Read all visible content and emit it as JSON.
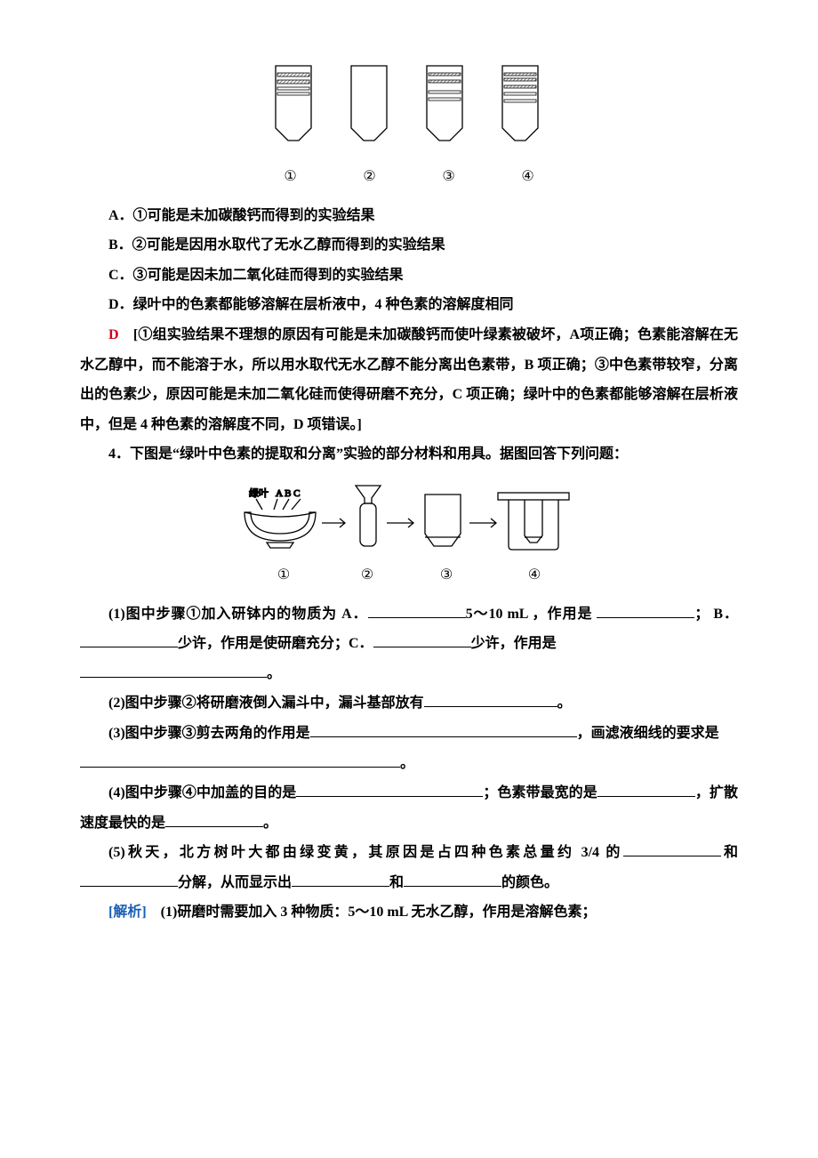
{
  "figure1": {
    "labels": [
      "①",
      "②",
      "③",
      "④"
    ],
    "stroke": "#000000",
    "fill_hatch": "#a8a8a8",
    "strips": {
      "s1": [
        {
          "y": 8,
          "h": 4,
          "fill": true
        },
        {
          "y": 16,
          "h": 4,
          "fill": true
        },
        {
          "y": 24,
          "h": 3,
          "fill": false
        },
        {
          "y": 30,
          "h": 3,
          "fill": false
        }
      ],
      "s2": [],
      "s3": [
        {
          "y": 8,
          "h": 3,
          "fill": true
        },
        {
          "y": 16,
          "h": 3,
          "fill": true
        },
        {
          "y": 28,
          "h": 3,
          "fill": false
        },
        {
          "y": 36,
          "h": 3,
          "fill": false
        }
      ],
      "s4": [
        {
          "y": 8,
          "h": 3,
          "fill": true
        },
        {
          "y": 14,
          "h": 3,
          "fill": true
        },
        {
          "y": 22,
          "h": 3,
          "fill": true
        },
        {
          "y": 30,
          "h": 3,
          "fill": false
        },
        {
          "y": 38,
          "h": 3,
          "fill": false
        }
      ]
    }
  },
  "figure2": {
    "mortar_label_left": "绿叶",
    "mortar_label_right": "A  B  C",
    "labels": [
      "①",
      "②",
      "③",
      "④"
    ],
    "stroke": "#000000"
  },
  "options": {
    "A": "A．①可能是未加碳酸钙而得到的实验结果",
    "B": "B．②可能是因用水取代了无水乙醇而得到的实验结果",
    "C": "C．③可能是因未加二氧化硅而得到的实验结果",
    "D": "D．绿叶中的色素都能够溶解在层析液中，4 种色素的溶解度相同"
  },
  "answer": {
    "key": "D",
    "text_pre": "　[①组实验结果不理想的原因有可能是未加碳酸钙而使叶绿素被破坏，A项正确；色素能溶解在无水乙醇中，而不能溶于水，所以用水取代无水乙醇不能分离出色素带，B 项正确；③中色素带较窄，分离出的色素少，原因可能是未加二氧化硅而使得研磨不充分，C 项正确；绿叶中的色素都能够溶解在层析液中，但是 4 种色素的溶解度不同，D 项错误。]"
  },
  "q4": {
    "stem": "4．下图是“绿叶中色素的提取和分离”实验的部分材料和用具。据图回答下列问题：",
    "sub1_pre": "(1)图中步骤①加入研钵内的物质为 A．",
    "sub1_mid1": "5～10 mL ，作用是",
    "sub1_mid2": "； B．",
    "sub1_mid3": "少许，作用是使研磨充分；C．",
    "sub1_mid4": "少许，作用是",
    "sub1_end": "。",
    "sub2_pre": "(2)图中步骤②将研磨液倒入漏斗中，漏斗基部放有",
    "sub2_end": "。",
    "sub3_pre": "(3)图中步骤③剪去两角的作用是",
    "sub3_mid": "，画滤液细线的要求是",
    "sub3_end": "。",
    "sub4_pre": "(4)图中步骤④中加盖的目的是",
    "sub4_mid": "；色素带最宽的是",
    "sub4_mid2": "，扩散速度最快的是",
    "sub4_end": "。",
    "sub5_pre": "(5)秋天，北方树叶大都由绿变黄，其原因是占四种色素总量约 3/4 的",
    "sub5_mid1": "和",
    "sub5_mid2": "分解，从而显示出",
    "sub5_mid3": "和",
    "sub5_end": "的颜色。"
  },
  "analysis": {
    "label": "[解析]",
    "text": "　(1)研磨时需要加入 3 种物质：5～10 mL 无水乙醇，作用是溶解色素；"
  }
}
